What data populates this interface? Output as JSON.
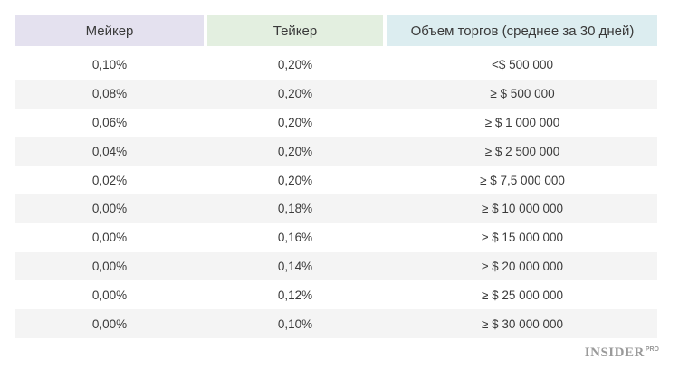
{
  "colors": {
    "header_maker_bg": "#e4e1ef",
    "header_taker_bg": "#e3efe0",
    "header_volume_bg": "#dcedf0",
    "row_alt_bg": "#f4f4f4",
    "text": "#3a3a3a",
    "logo": "#9a9a9a"
  },
  "table": {
    "headers": {
      "maker": "Мейкер",
      "taker": "Тейкер",
      "volume": "Объем торгов (среднее за 30 дней)"
    },
    "rows": [
      {
        "maker": "0,10%",
        "taker": "0,20%",
        "volume": "<$ 500 000"
      },
      {
        "maker": "0,08%",
        "taker": "0,20%",
        "volume": "≥ $ 500 000"
      },
      {
        "maker": "0,06%",
        "taker": "0,20%",
        "volume": "≥ $ 1 000 000"
      },
      {
        "maker": "0,04%",
        "taker": "0,20%",
        "volume": "≥ $ 2 500 000"
      },
      {
        "maker": "0,02%",
        "taker": "0,20%",
        "volume": "≥ $ 7,5 000 000"
      },
      {
        "maker": "0,00%",
        "taker": "0,18%",
        "volume": "≥ $ 10 000 000"
      },
      {
        "maker": "0,00%",
        "taker": "0,16%",
        "volume": "≥ $ 15 000 000"
      },
      {
        "maker": "0,00%",
        "taker": "0,14%",
        "volume": "≥ $ 20 000 000"
      },
      {
        "maker": "0,00%",
        "taker": "0,12%",
        "volume": "≥ $ 25 000 000"
      },
      {
        "maker": "0,00%",
        "taker": "0,10%",
        "volume": "≥ $ 30 000 000"
      }
    ]
  },
  "logo": {
    "main": "INSIDER",
    "sup": "PRO"
  }
}
